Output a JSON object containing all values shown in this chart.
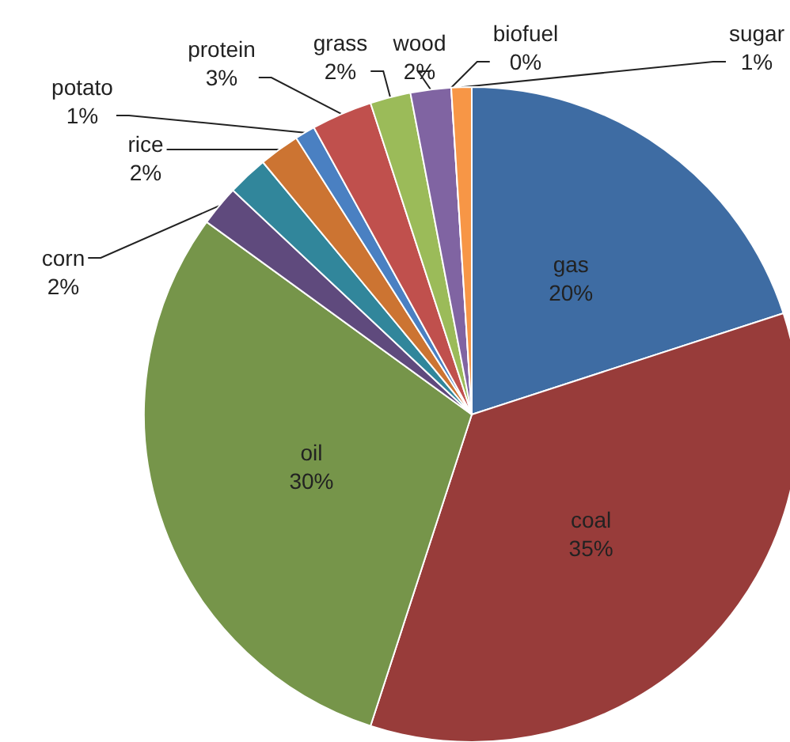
{
  "chart_data": {
    "type": "pie",
    "categories": [
      "gas",
      "coal",
      "oil",
      "corn",
      null,
      "rice",
      "potato",
      "protein",
      "grass",
      "wood",
      "biofuel",
      "sugar"
    ],
    "values": [
      20,
      35,
      30,
      2,
      2,
      2,
      1,
      3,
      2,
      2,
      0,
      1
    ],
    "value_labels": [
      "20%",
      "35%",
      "30%",
      "2%",
      null,
      "2%",
      "1%",
      "3%",
      "2%",
      "2%",
      "0%",
      "1%"
    ],
    "colors": [
      "#3e6ca3",
      "#983c3a",
      "#76954a",
      "#5f4a7d",
      "#31869b",
      "#cc7432",
      "#4a80c2",
      "#c0504d",
      "#9bbb59",
      "#8064a2",
      "#4bacc6",
      "#f79646"
    ],
    "legend": false
  }
}
